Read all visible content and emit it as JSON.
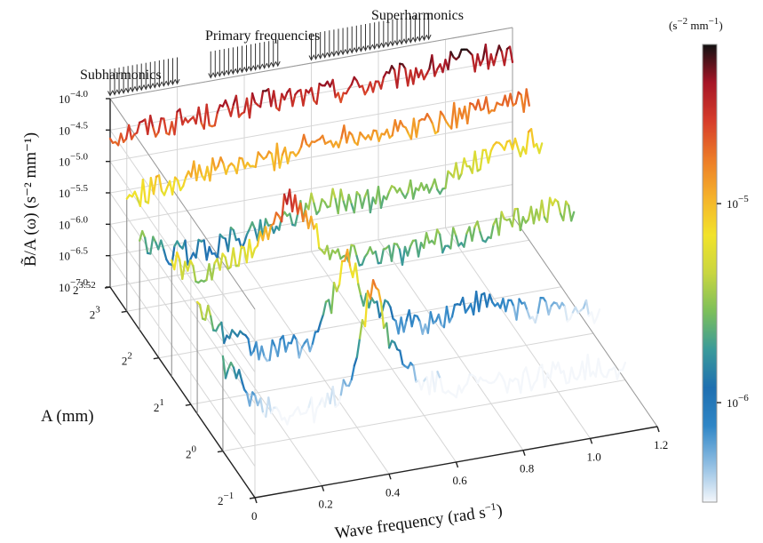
{
  "chart_data": {
    "type": "line",
    "subtype": "3d-waterfall",
    "xlabel": "Wave frequency (rad s",
    "xlabel_sup": "−1",
    "xlabel_close": ")",
    "x_ticks": [
      "0",
      "0.2",
      "0.4",
      "0.6",
      "0.8",
      "1.0",
      "1.2"
    ],
    "x_tick_values": [
      0,
      0.2,
      0.4,
      0.6,
      0.8,
      1.0,
      1.2
    ],
    "xlim": [
      0,
      1.2
    ],
    "ylabel": "A (mm)",
    "y_ticks": [
      {
        "base": "2",
        "exp": "−1",
        "value": -1
      },
      {
        "base": "2",
        "exp": "0",
        "value": 0
      },
      {
        "base": "2",
        "exp": "1",
        "value": 1
      },
      {
        "base": "2",
        "exp": "2",
        "value": 2
      },
      {
        "base": "2",
        "exp": "3",
        "value": 3
      },
      {
        "base": "2",
        "exp": "3.52",
        "value": 3.52
      }
    ],
    "ylim_log2": [
      -1,
      3.52
    ],
    "zlabel": "B̃/A (ω) (s⁻² mm⁻¹)",
    "z_ticks": [
      {
        "base": "10",
        "exp": "−7.0",
        "value": -7.0
      },
      {
        "base": "10",
        "exp": "−6.5",
        "value": -6.5
      },
      {
        "base": "10",
        "exp": "−6.0",
        "value": -6.0
      },
      {
        "base": "10",
        "exp": "−5.5",
        "value": -5.5
      },
      {
        "base": "10",
        "exp": "−5.0",
        "value": -5.0
      },
      {
        "base": "10",
        "exp": "−4.5",
        "value": -4.5
      },
      {
        "base": "10",
        "exp": "−4.0",
        "value": -4.0
      }
    ],
    "zlim_log10": [
      -7.0,
      -4.0
    ],
    "zscale": "log",
    "annotations": [
      "Subharmonics",
      "Primary frequencies",
      "Superharmonics"
    ],
    "annotation_freq_ranges": [
      [
        0.0,
        0.2
      ],
      [
        0.3,
        0.5
      ],
      [
        0.6,
        0.95
      ]
    ],
    "colorbar": {
      "title": "(s",
      "title_sup1": "−2",
      "title_mid": " mm",
      "title_sup2": "−1",
      "title_close": ")",
      "ticks": [
        {
          "base": "10",
          "exp": "−5",
          "value": -5
        },
        {
          "base": "10",
          "exp": "−6",
          "value": -6
        }
      ],
      "range_log10": [
        -6.5,
        -4.2
      ],
      "colormap": [
        "#f4f7fb",
        "#8fbde2",
        "#2f86c6",
        "#1f6fb0",
        "#3a9a9a",
        "#7cbf5a",
        "#c8d640",
        "#f2e32a",
        "#f5b12a",
        "#ec7b28",
        "#d63c2a",
        "#a51526",
        "#111111"
      ]
    },
    "series": [
      {
        "A_log2": 3.52,
        "freq": [
          0.0,
          0.1,
          0.2,
          0.3,
          0.4,
          0.5,
          0.6,
          0.7,
          0.8,
          0.9,
          1.0,
          1.1,
          1.2
        ],
        "log10_spectrum": [
          -4.6,
          -4.55,
          -4.55,
          -4.55,
          -4.5,
          -4.5,
          -4.5,
          -4.5,
          -4.5,
          -4.45,
          -4.4,
          -4.4,
          -4.4
        ]
      },
      {
        "A_log2": 3.0,
        "freq": [
          0.0,
          0.1,
          0.2,
          0.3,
          0.4,
          0.5,
          0.6,
          0.7,
          0.8,
          0.9,
          1.0,
          1.1,
          1.2
        ],
        "log10_spectrum": [
          -5.2,
          -5.1,
          -5.0,
          -5.0,
          -5.0,
          -4.9,
          -4.8,
          -4.8,
          -4.9,
          -4.85,
          -4.8,
          -4.7,
          -4.75
        ]
      },
      {
        "A_log2": 2.6,
        "freq": [
          0.0,
          0.1,
          0.2,
          0.3,
          0.4,
          0.5,
          0.6,
          0.7,
          0.8,
          0.9,
          1.0,
          1.1,
          1.2
        ],
        "log10_spectrum": [
          -5.6,
          -5.9,
          -5.9,
          -5.8,
          -5.7,
          -5.5,
          -5.5,
          -5.6,
          -5.5,
          -5.5,
          -5.3,
          -5.1,
          -5.1
        ]
      },
      {
        "A_log2": 1.6,
        "freq": [
          0.0,
          0.1,
          0.2,
          0.3,
          0.35,
          0.4,
          0.45,
          0.5,
          0.6,
          0.7,
          0.8,
          0.9,
          1.0,
          1.1,
          1.2
        ],
        "log10_spectrum": [
          -5.2,
          -5.5,
          -5.3,
          -4.9,
          -4.5,
          -4.8,
          -5.3,
          -5.6,
          -5.6,
          -5.7,
          -5.6,
          -5.6,
          -5.5,
          -5.4,
          -5.5
        ]
      },
      {
        "A_log2": 0.8,
        "freq": [
          0.0,
          0.1,
          0.2,
          0.3,
          0.35,
          0.4,
          0.45,
          0.5,
          0.6,
          0.7,
          0.8,
          0.9,
          1.0,
          1.1,
          1.2
        ],
        "log10_spectrum": [
          -5.3,
          -5.9,
          -6.2,
          -6.2,
          -6.1,
          -5.6,
          -4.9,
          -5.6,
          -6.1,
          -6.2,
          -6.0,
          -6.1,
          -6.3,
          -6.4,
          -6.5
        ]
      },
      {
        "A_log2": 0.0,
        "freq": [
          0.0,
          0.1,
          0.2,
          0.3,
          0.35,
          0.4,
          0.45,
          0.5,
          0.6,
          0.7,
          0.8,
          0.9,
          1.0,
          1.1,
          1.2
        ],
        "log10_spectrum": [
          -5.6,
          -6.3,
          -6.6,
          -6.6,
          -6.4,
          -5.9,
          -4.6,
          -5.8,
          -6.5,
          -6.6,
          -6.7,
          -6.7,
          -6.7,
          -6.7,
          -6.8
        ]
      }
    ],
    "grid": true,
    "legend": "colorbar-right"
  }
}
